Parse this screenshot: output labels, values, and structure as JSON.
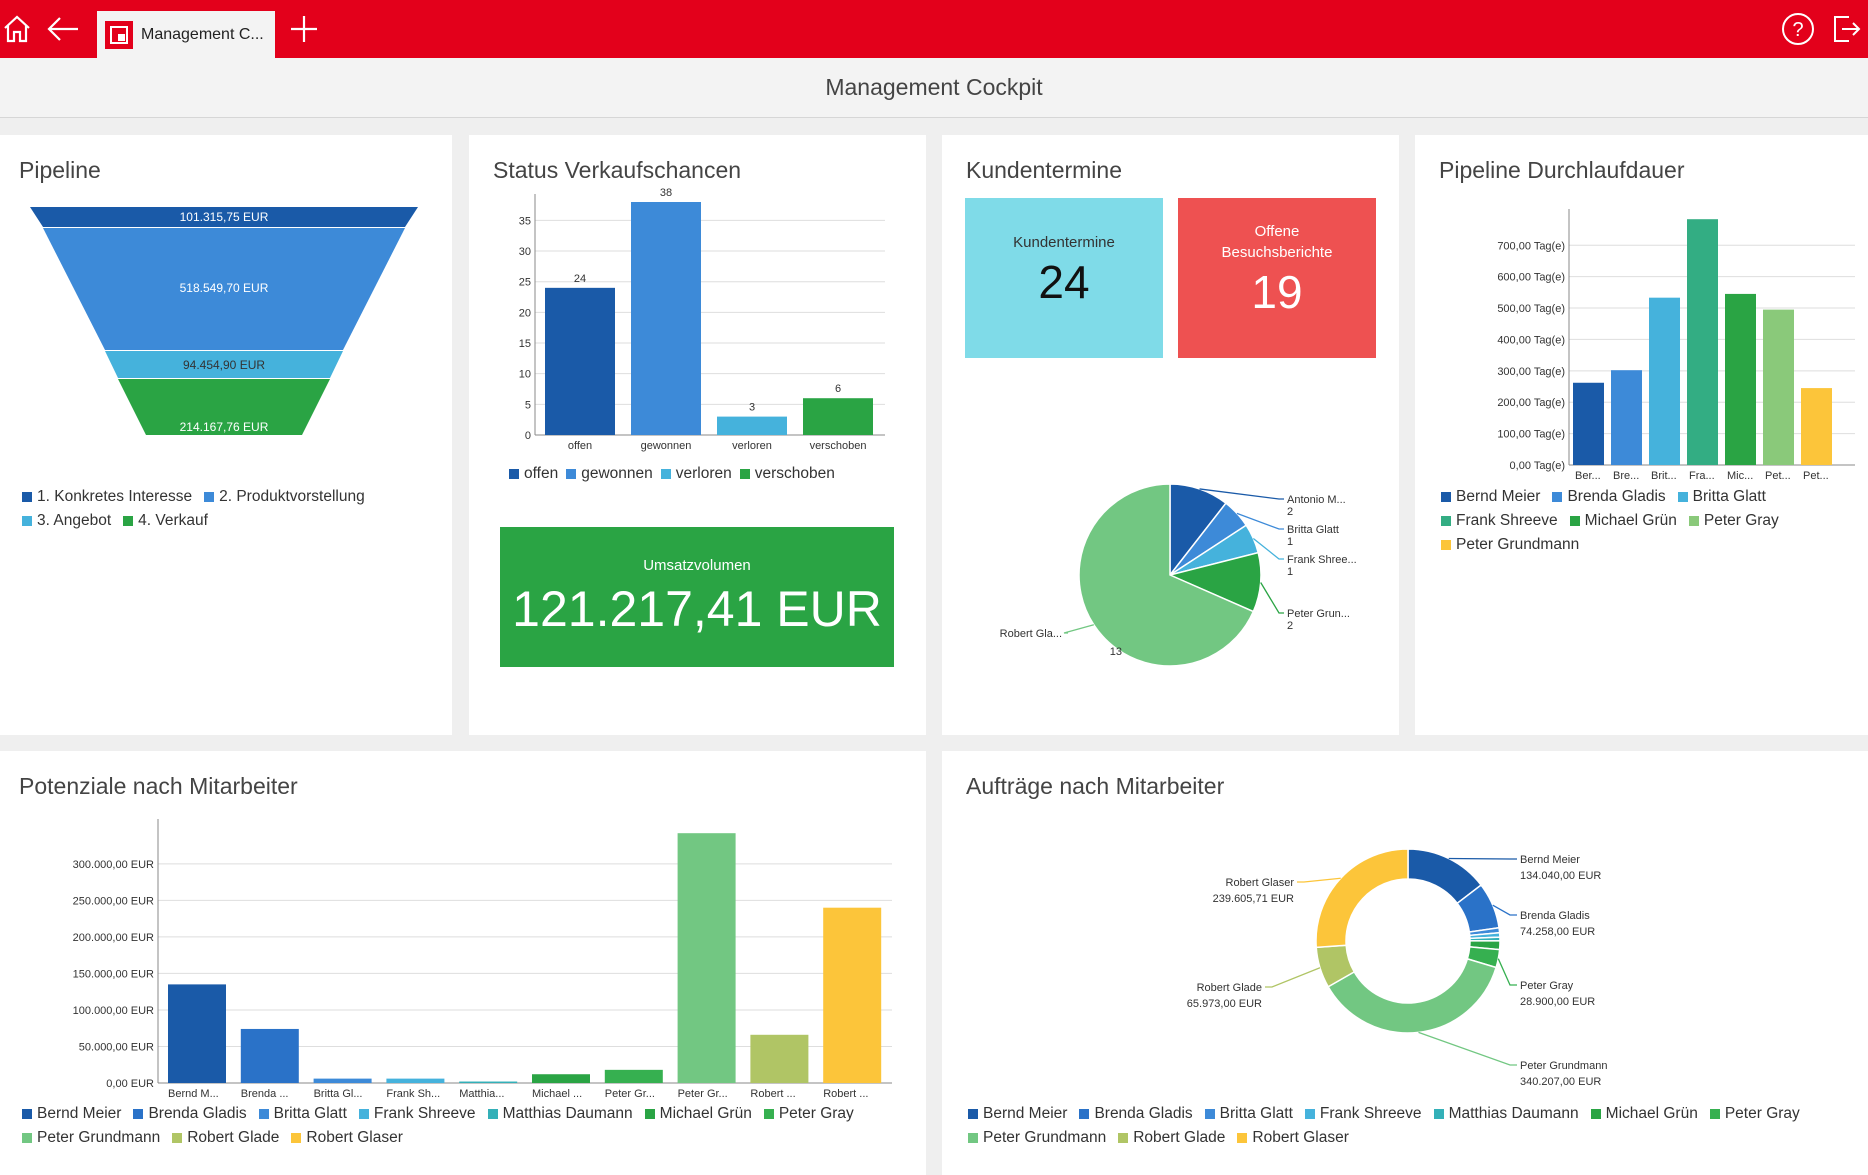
{
  "topbar": {
    "tab_label": "Management C...",
    "icons": [
      "home-icon",
      "back-arrow-icon",
      "add-icon",
      "help-icon",
      "logout-icon"
    ],
    "accent": "#e3001b"
  },
  "header": {
    "title": "Management Cockpit"
  },
  "pipeline": {
    "title": "Pipeline",
    "chart_data": {
      "type": "funnel",
      "values": [
        "101.315,75 EUR",
        "518.549,70 EUR",
        "94.454,90 EUR",
        "214.167,76 EUR"
      ],
      "stages": [
        "1. Konkretes Interesse",
        "2. Produktvorstellung",
        "3. Angebot",
        "4. Verkauf"
      ],
      "colors": [
        "#1a5aa8",
        "#3d8ad8",
        "#45b2dc",
        "#2aa444"
      ],
      "legend_position": "bottom"
    }
  },
  "status": {
    "title": "Status Verkaufschancen",
    "chart_data": {
      "type": "bar",
      "categories": [
        "offen",
        "gewonnen",
        "verloren",
        "verschoben"
      ],
      "values": [
        24,
        38,
        3,
        6
      ],
      "ylim": [
        0,
        38
      ],
      "yticks": [
        0,
        5,
        10,
        15,
        20,
        25,
        30,
        35
      ],
      "colors": [
        "#1a5aa8",
        "#3d8ad8",
        "#45b2dc",
        "#2aa444"
      ],
      "grid": true,
      "legend_position": "bottom"
    },
    "tile": {
      "label": "Umsatzvolumen",
      "value": "121.217,41 EUR",
      "color": "#2aa444"
    }
  },
  "kundentermine": {
    "title": "Kundentermine",
    "tiles": [
      {
        "label": "Kundentermine",
        "value": "24",
        "color": "#7fdbe8"
      },
      {
        "label1": "Offene",
        "label2": "Besuchsberichte",
        "value": "19",
        "color": "#ee5151"
      }
    ],
    "chart_data": {
      "type": "pie",
      "labels": [
        "Antonio M...",
        "Britta Glatt",
        "Frank Shree...",
        "Peter Grun...",
        "Robert Gla..."
      ],
      "values": [
        2,
        1,
        1,
        2,
        13
      ],
      "colors": [
        "#1a5aa8",
        "#3d8ad8",
        "#45b2dc",
        "#2aa444",
        "#72c782"
      ]
    }
  },
  "durchlauf": {
    "title": "Pipeline Durchlaufdauer",
    "chart_data": {
      "type": "bar",
      "categories": [
        "Ber...",
        "Bre...",
        "Brit...",
        "Fra...",
        "Mic...",
        "Pet...",
        "Pet..."
      ],
      "values": [
        262,
        302,
        533,
        783,
        545,
        495,
        245
      ],
      "ylim": [
        0,
        790
      ],
      "yticks": [
        "0,00 Tag(e)",
        "100,00 Tag(e)",
        "200,00 Tag(e)",
        "300,00 Tag(e)",
        "400,00 Tag(e)",
        "500,00 Tag(e)",
        "600,00 Tag(e)",
        "700,00 Tag(e)"
      ],
      "ytick_values": [
        0,
        100,
        200,
        300,
        400,
        500,
        600,
        700
      ],
      "series_names": [
        "Bernd Meier",
        "Brenda Gladis",
        "Britta Glatt",
        "Frank Shreeve",
        "Michael Grün",
        "Peter Gray",
        "Peter Grundmann"
      ],
      "colors": [
        "#1a5aa8",
        "#3d8ad8",
        "#45b2dc",
        "#33ad83",
        "#2aa444",
        "#8ac97a",
        "#fcc53a"
      ],
      "grid": true,
      "legend_position": "bottom"
    }
  },
  "potenziale": {
    "title": "Potenziale nach Mitarbeiter",
    "chart_data": {
      "type": "bar",
      "categories": [
        "Bernd M...",
        "Brenda ...",
        "Britta Gl...",
        "Frank Sh...",
        "Matthia...",
        "Michael ...",
        "Peter Gr...",
        "Peter Gr...",
        "Robert ...",
        "Robert ..."
      ],
      "values": [
        135000,
        74000,
        6000,
        6000,
        2000,
        12000,
        18000,
        342000,
        66000,
        240000
      ],
      "ylim": [
        0,
        345000
      ],
      "yticks": [
        "0,00 EUR",
        "50.000,00 EUR",
        "100.000,00 EUR",
        "150.000,00 EUR",
        "200.000,00 EUR",
        "250.000,00 EUR",
        "300.000,00 EUR"
      ],
      "ytick_values": [
        0,
        50000,
        100000,
        150000,
        200000,
        250000,
        300000
      ],
      "series_names": [
        "Bernd Meier",
        "Brenda Gladis",
        "Britta Glatt",
        "Frank Shreeve",
        "Matthias Daumann",
        "Michael Grün",
        "Peter Gray",
        "Peter Grundmann",
        "Robert Glade",
        "Robert Glaser"
      ],
      "colors": [
        "#1a5aa8",
        "#2a72c8",
        "#3d8ad8",
        "#45b2dc",
        "#33b0b8",
        "#2aa444",
        "#36b050",
        "#72c782",
        "#b0c565",
        "#fcc53a"
      ],
      "grid": true,
      "legend_position": "bottom"
    }
  },
  "auftraege": {
    "title": "Aufträge nach Mitarbeiter",
    "chart_data": {
      "type": "donut",
      "segments": [
        {
          "name": "Bernd Meier",
          "value": 134040,
          "label": "134.040,00 EUR"
        },
        {
          "name": "Brenda Gladis",
          "value": 74258,
          "label": "74.258,00 EUR"
        },
        {
          "name": "Britta Glatt",
          "value": 8000
        },
        {
          "name": "Frank Shreeve",
          "value": 7000
        },
        {
          "name": "Matthias Daumann",
          "value": 6000
        },
        {
          "name": "Michael Grün",
          "value": 14000
        },
        {
          "name": "Peter Gray",
          "value": 28900,
          "label": "28.900,00 EUR"
        },
        {
          "name": "Peter Grundmann",
          "value": 340207,
          "label": "340.207,00 EUR"
        },
        {
          "name": "Robert Glade",
          "value": 65973,
          "label": "65.973,00 EUR"
        },
        {
          "name": "Robert Glaser",
          "value": 239605.71,
          "label": "239.605,71 EUR"
        }
      ],
      "colors": [
        "#1a5aa8",
        "#2a72c8",
        "#3d8ad8",
        "#45b2dc",
        "#33b0b8",
        "#2aa444",
        "#36b050",
        "#72c782",
        "#b0c565",
        "#fcc53a"
      ],
      "legend_position": "bottom"
    }
  }
}
